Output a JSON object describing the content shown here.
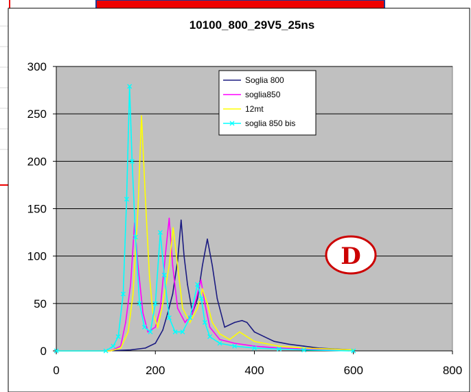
{
  "colors": {
    "plot_area": "#c0c0c0",
    "chart_area": "#ffffff",
    "gridline": "#000000",
    "backdrop_box": "#ee0000",
    "backdrop_frame": "#1f3a93",
    "annotation": "#cc0000"
  },
  "annotation": {
    "label": "D"
  },
  "chart_data": {
    "type": "line",
    "title": "10100_800_29V5_25ns",
    "xlabel": "",
    "ylabel": "",
    "xlim": [
      0,
      800
    ],
    "ylim": [
      0,
      300
    ],
    "x_ticks": [
      0,
      200,
      400,
      600,
      800
    ],
    "y_ticks": [
      0,
      50,
      100,
      150,
      200,
      250,
      300
    ],
    "grid": "horizontal major gridlines",
    "legend_position": "top-right",
    "series": [
      {
        "name": "Soglia 800",
        "color": "#1a1a80",
        "marker": "none",
        "points": [
          [
            0,
            0
          ],
          [
            100,
            0
          ],
          [
            150,
            1
          ],
          [
            180,
            3
          ],
          [
            200,
            8
          ],
          [
            215,
            22
          ],
          [
            225,
            40
          ],
          [
            235,
            60
          ],
          [
            245,
            95
          ],
          [
            252,
            138
          ],
          [
            258,
            100
          ],
          [
            265,
            70
          ],
          [
            275,
            40
          ],
          [
            285,
            55
          ],
          [
            295,
            90
          ],
          [
            305,
            118
          ],
          [
            315,
            90
          ],
          [
            325,
            55
          ],
          [
            340,
            25
          ],
          [
            360,
            30
          ],
          [
            375,
            32
          ],
          [
            385,
            30
          ],
          [
            400,
            20
          ],
          [
            420,
            15
          ],
          [
            440,
            10
          ],
          [
            470,
            7
          ],
          [
            500,
            5
          ],
          [
            530,
            3
          ],
          [
            560,
            2
          ],
          [
            600,
            1
          ]
        ]
      },
      {
        "name": "soglia850",
        "color": "#ff00ff",
        "marker": "none",
        "points": [
          [
            0,
            0
          ],
          [
            110,
            0
          ],
          [
            130,
            5
          ],
          [
            140,
            30
          ],
          [
            150,
            70
          ],
          [
            158,
            135
          ],
          [
            165,
            90
          ],
          [
            175,
            40
          ],
          [
            185,
            20
          ],
          [
            200,
            25
          ],
          [
            210,
            45
          ],
          [
            220,
            100
          ],
          [
            228,
            140
          ],
          [
            235,
            90
          ],
          [
            245,
            45
          ],
          [
            260,
            30
          ],
          [
            275,
            40
          ],
          [
            285,
            60
          ],
          [
            292,
            75
          ],
          [
            300,
            50
          ],
          [
            310,
            25
          ],
          [
            330,
            12
          ],
          [
            360,
            8
          ],
          [
            400,
            5
          ],
          [
            450,
            3
          ],
          [
            500,
            2
          ],
          [
            550,
            1
          ],
          [
            600,
            0
          ]
        ]
      },
      {
        "name": "12mt",
        "color": "#ffff00",
        "marker": "none",
        "points": [
          [
            0,
            0
          ],
          [
            110,
            0
          ],
          [
            130,
            3
          ],
          [
            145,
            20
          ],
          [
            155,
            60
          ],
          [
            165,
            150
          ],
          [
            172,
            248
          ],
          [
            180,
            160
          ],
          [
            188,
            80
          ],
          [
            195,
            40
          ],
          [
            205,
            25
          ],
          [
            215,
            50
          ],
          [
            228,
            90
          ],
          [
            236,
            130
          ],
          [
            245,
            90
          ],
          [
            255,
            45
          ],
          [
            270,
            30
          ],
          [
            285,
            45
          ],
          [
            295,
            65
          ],
          [
            305,
            50
          ],
          [
            315,
            30
          ],
          [
            330,
            18
          ],
          [
            350,
            12
          ],
          [
            370,
            20
          ],
          [
            385,
            15
          ],
          [
            400,
            10
          ],
          [
            450,
            5
          ],
          [
            500,
            3
          ],
          [
            550,
            2
          ],
          [
            600,
            1
          ]
        ]
      },
      {
        "name": "soglia 850 bis",
        "color": "#00ffff",
        "marker": "x",
        "points": [
          [
            0,
            0
          ],
          [
            100,
            0
          ],
          [
            115,
            5
          ],
          [
            125,
            15
          ],
          [
            135,
            60
          ],
          [
            142,
            160
          ],
          [
            148,
            279
          ],
          [
            153,
            200
          ],
          [
            160,
            120
          ],
          [
            168,
            50
          ],
          [
            178,
            25
          ],
          [
            190,
            20
          ],
          [
            200,
            50
          ],
          [
            210,
            125
          ],
          [
            218,
            80
          ],
          [
            228,
            35
          ],
          [
            240,
            20
          ],
          [
            255,
            20
          ],
          [
            270,
            35
          ],
          [
            285,
            70
          ],
          [
            293,
            55
          ],
          [
            300,
            30
          ],
          [
            310,
            15
          ],
          [
            330,
            8
          ],
          [
            360,
            5
          ],
          [
            400,
            3
          ],
          [
            450,
            2
          ],
          [
            500,
            1
          ],
          [
            600,
            0
          ]
        ]
      }
    ]
  }
}
